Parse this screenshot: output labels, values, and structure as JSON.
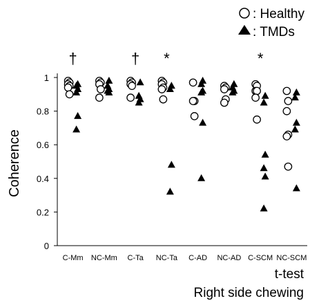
{
  "chart_data": {
    "type": "scatter",
    "ylabel": "Coherence",
    "ylim": [
      0,
      1
    ],
    "yticks": [
      "0",
      "0.2",
      "0.4",
      "0.6",
      "0.8",
      "1"
    ],
    "categories": [
      "C-Mm",
      "NC-Mm",
      "C-Ta",
      "NC-Ta",
      "C-AD",
      "NC-AD",
      "C-SCM",
      "NC-SCM"
    ],
    "legend": {
      "placement": "top-right",
      "healthy_label": ": Healthy",
      "tmds_label": ": TMDs"
    },
    "footer": {
      "line1": "t-test",
      "line2": "Right side chewing"
    },
    "significance": [
      "†",
      "",
      "†",
      "*",
      "",
      "",
      "*",
      ""
    ],
    "series": [
      {
        "name": ": Healthy",
        "marker": "open-circle",
        "color": "#000000",
        "values": [
          [
            0.98,
            0.97,
            0.96,
            0.95,
            0.94,
            0.9
          ],
          [
            0.98,
            0.97,
            0.96,
            0.93,
            0.88
          ],
          [
            0.98,
            0.97,
            0.96,
            0.95,
            0.88
          ],
          [
            0.98,
            0.97,
            0.96,
            0.94,
            0.93,
            0.87
          ],
          [
            0.97,
            0.86,
            0.86,
            0.77
          ],
          [
            0.95,
            0.94,
            0.93,
            0.87,
            0.85
          ],
          [
            0.96,
            0.95,
            0.92,
            0.92,
            0.88,
            0.75
          ],
          [
            0.92,
            0.86,
            0.8,
            0.66,
            0.65,
            0.47
          ]
        ]
      },
      {
        "name": ": TMDs",
        "marker": "filled-triangle",
        "color": "#000000",
        "values": [
          [
            0.96,
            0.95,
            0.93,
            0.91,
            0.77,
            0.69
          ],
          [
            0.98,
            0.95,
            0.93,
            0.92,
            0.91
          ],
          [
            0.97,
            0.89,
            0.87,
            0.85
          ],
          [
            0.95,
            0.93,
            0.48,
            0.32
          ],
          [
            0.98,
            0.96,
            0.92,
            0.91,
            0.73,
            0.4
          ],
          [
            0.96,
            0.94,
            0.92,
            0.91
          ],
          [
            0.89,
            0.85,
            0.54,
            0.46,
            0.41,
            0.22
          ],
          [
            0.91,
            0.88,
            0.73,
            0.69,
            0.34
          ]
        ]
      }
    ]
  }
}
